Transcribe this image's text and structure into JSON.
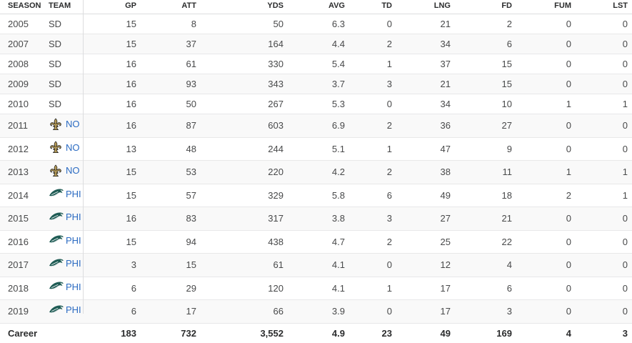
{
  "headers": {
    "season": "SEASON",
    "team": "TEAM",
    "gp": "GP",
    "att": "ATT",
    "yds": "YDS",
    "avg": "AVG",
    "td": "TD",
    "lng": "LNG",
    "fd": "FD",
    "fum": "FUM",
    "lst": "LST"
  },
  "rows": [
    {
      "season": "2005",
      "team": "SD",
      "logo": "",
      "gp": "15",
      "att": "8",
      "yds": "50",
      "avg": "6.3",
      "td": "0",
      "lng": "21",
      "fd": "2",
      "fum": "0",
      "lst": "0"
    },
    {
      "season": "2007",
      "team": "SD",
      "logo": "",
      "gp": "15",
      "att": "37",
      "yds": "164",
      "avg": "4.4",
      "td": "2",
      "lng": "34",
      "fd": "6",
      "fum": "0",
      "lst": "0"
    },
    {
      "season": "2008",
      "team": "SD",
      "logo": "",
      "gp": "16",
      "att": "61",
      "yds": "330",
      "avg": "5.4",
      "td": "1",
      "lng": "37",
      "fd": "15",
      "fum": "0",
      "lst": "0"
    },
    {
      "season": "2009",
      "team": "SD",
      "logo": "",
      "gp": "16",
      "att": "93",
      "yds": "343",
      "avg": "3.7",
      "td": "3",
      "lng": "21",
      "fd": "15",
      "fum": "0",
      "lst": "0"
    },
    {
      "season": "2010",
      "team": "SD",
      "logo": "",
      "gp": "16",
      "att": "50",
      "yds": "267",
      "avg": "5.3",
      "td": "0",
      "lng": "34",
      "fd": "10",
      "fum": "1",
      "lst": "1"
    },
    {
      "season": "2011",
      "team": "NO",
      "logo": "fleur-de-lis-icon",
      "gp": "16",
      "att": "87",
      "yds": "603",
      "avg": "6.9",
      "td": "2",
      "lng": "36",
      "fd": "27",
      "fum": "0",
      "lst": "0"
    },
    {
      "season": "2012",
      "team": "NO",
      "logo": "fleur-de-lis-icon",
      "gp": "13",
      "att": "48",
      "yds": "244",
      "avg": "5.1",
      "td": "1",
      "lng": "47",
      "fd": "9",
      "fum": "0",
      "lst": "0"
    },
    {
      "season": "2013",
      "team": "NO",
      "logo": "fleur-de-lis-icon",
      "gp": "15",
      "att": "53",
      "yds": "220",
      "avg": "4.2",
      "td": "2",
      "lng": "38",
      "fd": "11",
      "fum": "1",
      "lst": "1"
    },
    {
      "season": "2014",
      "team": "PHI",
      "logo": "eagle-head-icon",
      "gp": "15",
      "att": "57",
      "yds": "329",
      "avg": "5.8",
      "td": "6",
      "lng": "49",
      "fd": "18",
      "fum": "2",
      "lst": "1"
    },
    {
      "season": "2015",
      "team": "PHI",
      "logo": "eagle-head-icon",
      "gp": "16",
      "att": "83",
      "yds": "317",
      "avg": "3.8",
      "td": "3",
      "lng": "27",
      "fd": "21",
      "fum": "0",
      "lst": "0"
    },
    {
      "season": "2016",
      "team": "PHI",
      "logo": "eagle-head-icon",
      "gp": "15",
      "att": "94",
      "yds": "438",
      "avg": "4.7",
      "td": "2",
      "lng": "25",
      "fd": "22",
      "fum": "0",
      "lst": "0"
    },
    {
      "season": "2017",
      "team": "PHI",
      "logo": "eagle-head-icon",
      "gp": "3",
      "att": "15",
      "yds": "61",
      "avg": "4.1",
      "td": "0",
      "lng": "12",
      "fd": "4",
      "fum": "0",
      "lst": "0"
    },
    {
      "season": "2018",
      "team": "PHI",
      "logo": "eagle-head-icon",
      "gp": "6",
      "att": "29",
      "yds": "120",
      "avg": "4.1",
      "td": "1",
      "lng": "17",
      "fd": "6",
      "fum": "0",
      "lst": "0"
    },
    {
      "season": "2019",
      "team": "PHI",
      "logo": "eagle-head-icon",
      "gp": "6",
      "att": "17",
      "yds": "66",
      "avg": "3.9",
      "td": "0",
      "lng": "17",
      "fd": "3",
      "fum": "0",
      "lst": "0"
    }
  ],
  "career": {
    "label": "Career",
    "gp": "183",
    "att": "732",
    "yds": "3,552",
    "avg": "4.9",
    "td": "23",
    "lng": "49",
    "fd": "169",
    "fum": "4",
    "lst": "3"
  },
  "colors": {
    "link": "#2b6bc2",
    "saints_gold": "#b59a57",
    "saints_black": "#1a1a1a",
    "eagles_green": "#1f5c55"
  }
}
